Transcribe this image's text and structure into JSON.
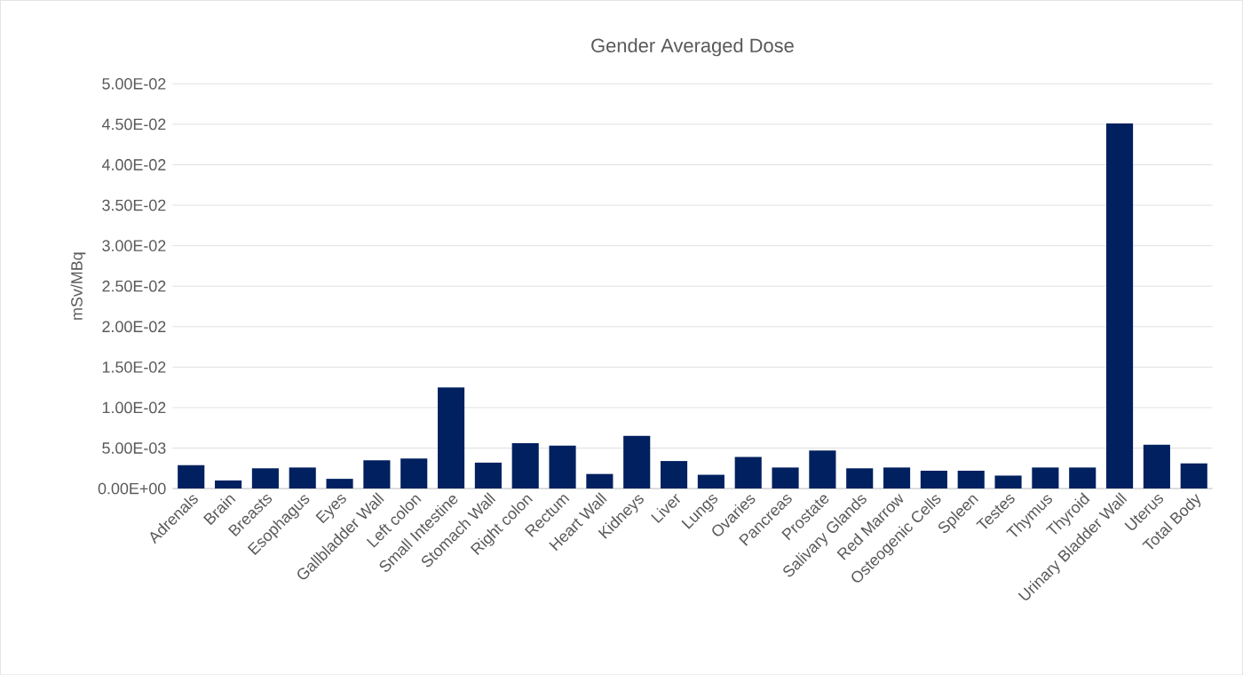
{
  "chart_data": {
    "type": "bar",
    "title": "Gender Averaged Dose",
    "ylabel": "mSv/MBq",
    "categories": [
      "Adrenals",
      "Brain",
      "Breasts",
      "Esophagus",
      "Eyes",
      "Gallbladder Wall",
      "Left colon",
      "Small Intestine",
      "Stomach Wall",
      "Right colon",
      "Rectum",
      "Heart Wall",
      "Kidneys",
      "Liver",
      "Lungs",
      "Ovaries",
      "Pancreas",
      "Prostate",
      "Salivary Glands",
      "Red Marrow",
      "Osteogenic Cells",
      "Spleen",
      "Testes",
      "Thymus",
      "Thyroid",
      "Urinary Bladder Wall",
      "Uterus",
      "Total Body"
    ],
    "values": [
      0.0029,
      0.001,
      0.0025,
      0.0026,
      0.0012,
      0.0035,
      0.0037,
      0.0125,
      0.0032,
      0.0056,
      0.0053,
      0.0018,
      0.0065,
      0.0034,
      0.0017,
      0.0039,
      0.0026,
      0.0047,
      0.0025,
      0.0026,
      0.0022,
      0.0022,
      0.0016,
      0.0026,
      0.0026,
      0.0451,
      0.0054,
      0.0031
    ],
    "color": "#002060",
    "ylim": [
      0,
      0.05
    ],
    "yticks": [
      {
        "value": 0,
        "label": "0.00E+00"
      },
      {
        "value": 0.005,
        "label": "5.00E-03"
      },
      {
        "value": 0.01,
        "label": "1.00E-02"
      },
      {
        "value": 0.015,
        "label": "1.50E-02"
      },
      {
        "value": 0.02,
        "label": "2.00E-02"
      },
      {
        "value": 0.025,
        "label": "2.50E-02"
      },
      {
        "value": 0.03,
        "label": "3.00E-02"
      },
      {
        "value": 0.035,
        "label": "3.50E-02"
      },
      {
        "value": 0.04,
        "label": "4.00E-02"
      },
      {
        "value": 0.045,
        "label": "4.50E-02"
      },
      {
        "value": 0.05,
        "label": "5.00E-02"
      }
    ],
    "grid": "y"
  }
}
